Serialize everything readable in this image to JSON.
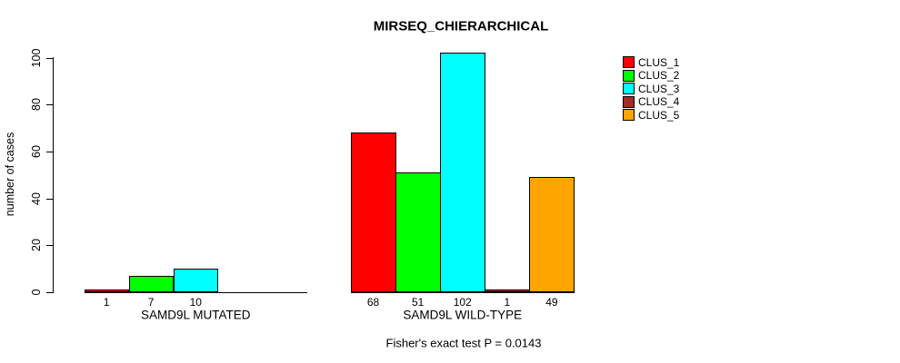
{
  "chart_data": {
    "type": "bar",
    "title": "MIRSEQ_CHIERARCHICAL",
    "ylabel": "number of cases",
    "xlabel": "",
    "ylim": [
      0,
      100
    ],
    "yticks": [
      0,
      20,
      40,
      60,
      80,
      100
    ],
    "grid": false,
    "legend_position": "top-right",
    "series": [
      "CLUS_1",
      "CLUS_2",
      "CLUS_3",
      "CLUS_4",
      "CLUS_5"
    ],
    "series_colors": [
      "#FF0000",
      "#00FF00",
      "#00FFFF",
      "#A52A2A",
      "#FFA500"
    ],
    "groups": [
      {
        "label": "SAMD9L MUTATED",
        "values": [
          1,
          7,
          10,
          0,
          0
        ],
        "value_labels": [
          "1",
          "7",
          "10",
          "",
          ""
        ]
      },
      {
        "label": "SAMD9L WILD-TYPE",
        "values": [
          68,
          51,
          102,
          1,
          49
        ],
        "value_labels": [
          "68",
          "51",
          "102",
          "1",
          "49"
        ]
      }
    ],
    "annotation": "Fisher's exact test P = 0.0143",
    "colors": {
      "background": "#FFFFFF",
      "axis": "#000000",
      "text": "#000000"
    }
  }
}
